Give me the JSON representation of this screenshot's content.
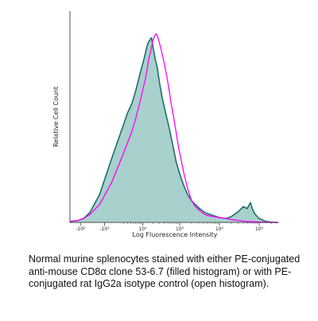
{
  "chart_data": {
    "type": "area",
    "xlabel": "Log Fluorescence Intensity",
    "ylabel": "Relative Cell Count",
    "x_tick_labels": [
      "-10²",
      "-10¹",
      "10²",
      "10³",
      "10⁴",
      "10⁵"
    ],
    "x_ticks": [
      -100,
      -10,
      100,
      1000,
      10000,
      100000
    ],
    "xlim": [
      -200,
      300000
    ],
    "ylim": [
      0,
      100
    ],
    "legend": "none",
    "grid": false,
    "series": [
      {
        "fill": "#a8d0cc",
        "line_color": "#1f6e6a",
        "style": "filled",
        "x": [
          -200,
          -120,
          -80,
          -50,
          -20,
          0,
          15,
          30,
          45,
          60,
          75,
          90,
          105,
          120,
          135,
          150,
          165,
          180,
          200,
          230,
          260,
          300,
          350,
          400,
          460,
          530,
          600,
          700,
          800,
          950,
          1100,
          1300,
          1600,
          2000,
          2500,
          3200,
          4000,
          5000,
          7000,
          10000,
          15000,
          20000,
          30000,
          40000,
          50000,
          60000,
          70000,
          80000,
          100000,
          150000,
          200000,
          300000
        ],
        "y": [
          0.5,
          1,
          2,
          5,
          14,
          32,
          46,
          55,
          60,
          66,
          72,
          77,
          81,
          85,
          89,
          91,
          92,
          93,
          88,
          82,
          78,
          70,
          63,
          58,
          53,
          48,
          43,
          37,
          31,
          26,
          22,
          18,
          14,
          11,
          9,
          7,
          5.5,
          4.5,
          3.5,
          2.5,
          2,
          3,
          5.5,
          8,
          7,
          10,
          6,
          4,
          2,
          0.5,
          0.2,
          0
        ]
      },
      {
        "line_color": "#ff00ff",
        "style": "open",
        "x": [
          -200,
          -120,
          -80,
          -50,
          -20,
          0,
          15,
          30,
          45,
          60,
          75,
          90,
          105,
          120,
          135,
          150,
          165,
          180,
          200,
          220,
          240,
          260,
          280,
          300,
          350,
          400,
          460,
          530,
          600,
          700,
          800,
          950,
          1100,
          1300,
          1600,
          2000,
          2500,
          3200,
          4000,
          5000,
          7000,
          10000,
          15000,
          20000,
          30000,
          50000,
          80000,
          150000,
          300000
        ],
        "y": [
          0.5,
          1,
          2,
          4,
          9,
          20,
          32,
          40,
          46,
          52,
          58,
          63,
          68,
          72,
          77,
          82,
          85,
          88,
          92,
          94,
          95,
          94,
          92,
          90,
          85,
          80,
          74,
          67,
          60,
          53,
          46,
          37,
          31,
          24,
          17,
          11,
          8,
          6,
          4.5,
          3.5,
          3,
          2.5,
          2,
          1.5,
          1,
          0.5,
          0.3,
          0.1,
          0
        ]
      }
    ]
  },
  "caption": "Normal murine splenocytes stained with either PE-conjugated anti-mouse CD8α clone 53-6.7 (filled histogram) or with PE-conjugated rat IgG2a isotype control (open histogram)."
}
